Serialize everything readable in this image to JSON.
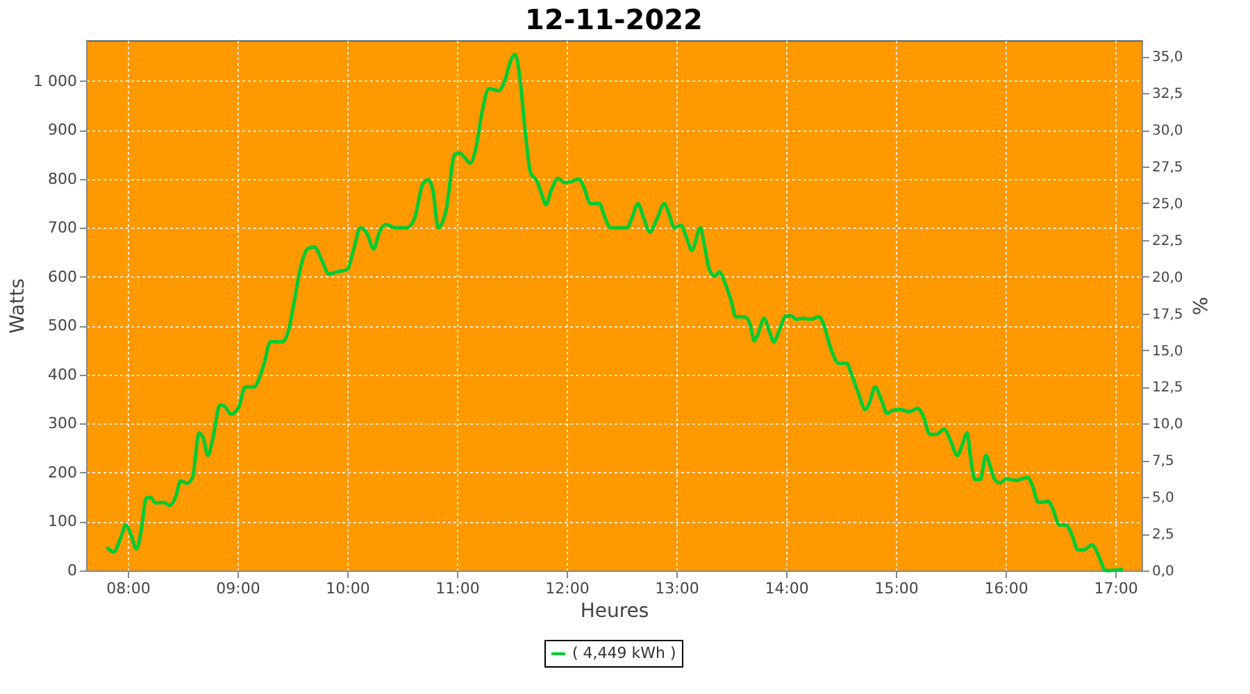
{
  "chart_data": {
    "type": "line",
    "title": "12-11-2022",
    "xlabel": "Heures",
    "ylabel": "Watts",
    "y2label": "%",
    "xlim": [
      7.62,
      17.24
    ],
    "xticks": [
      {
        "value": 8,
        "label": "08:00"
      },
      {
        "value": 9,
        "label": "09:00"
      },
      {
        "value": 10,
        "label": "10:00"
      },
      {
        "value": 11,
        "label": "11:00"
      },
      {
        "value": 12,
        "label": "12:00"
      },
      {
        "value": 13,
        "label": "13:00"
      },
      {
        "value": 14,
        "label": "14:00"
      },
      {
        "value": 15,
        "label": "15:00"
      },
      {
        "value": 16,
        "label": "16:00"
      },
      {
        "value": 17,
        "label": "17:00"
      }
    ],
    "ylim": [
      0,
      1083
    ],
    "yticks": [
      0,
      100,
      200,
      300,
      400,
      500,
      600,
      700,
      800,
      900,
      {
        "value": 1000,
        "label": "1 000"
      }
    ],
    "y2lim": [
      0,
      36.1
    ],
    "y2ticks": [
      {
        "value": 0,
        "label": "0,0"
      },
      {
        "value": 2.5,
        "label": "2,5"
      },
      {
        "value": 5,
        "label": "5,0"
      },
      {
        "value": 7.5,
        "label": "7,5"
      },
      {
        "value": 10,
        "label": "10,0"
      },
      {
        "value": 12.5,
        "label": "12,5"
      },
      {
        "value": 15,
        "label": "15,0"
      },
      {
        "value": 17.5,
        "label": "17,5"
      },
      {
        "value": 20,
        "label": "20,0"
      },
      {
        "value": 22.5,
        "label": "22,5"
      },
      {
        "value": 25,
        "label": "25,0"
      },
      {
        "value": 27.5,
        "label": "27,5"
      },
      {
        "value": 30,
        "label": "30,0"
      },
      {
        "value": 32.5,
        "label": "32,5"
      },
      {
        "value": 35,
        "label": "35,0"
      }
    ],
    "grid": true,
    "legend": "bottom",
    "series": [
      {
        "name": "( 4,449 kWh )",
        "color": "#00cc33",
        "x": [
          7.81,
          7.87,
          7.94,
          7.98,
          8.02,
          8.08,
          8.12,
          8.17,
          8.21,
          8.25,
          8.33,
          8.38,
          8.44,
          8.48,
          8.54,
          8.59,
          8.65,
          8.69,
          8.73,
          8.77,
          8.84,
          8.88,
          8.94,
          9.01,
          9.07,
          9.15,
          9.24,
          9.3,
          9.41,
          9.47,
          9.51,
          9.58,
          9.64,
          9.7,
          9.77,
          9.83,
          9.91,
          10.0,
          10.06,
          10.12,
          10.18,
          10.24,
          10.29,
          10.35,
          10.44,
          10.54,
          10.61,
          10.69,
          10.74,
          10.78,
          10.83,
          10.9,
          10.98,
          11.02,
          11.08,
          11.12,
          11.17,
          11.23,
          11.29,
          11.38,
          11.44,
          11.48,
          11.53,
          11.57,
          11.62,
          11.67,
          11.73,
          11.78,
          11.81,
          11.86,
          11.92,
          11.98,
          12.05,
          12.11,
          12.15,
          12.22,
          12.3,
          12.34,
          12.4,
          12.47,
          12.55,
          12.59,
          12.65,
          12.7,
          12.76,
          12.82,
          12.89,
          12.93,
          12.98,
          13.04,
          13.1,
          13.14,
          13.22,
          13.25,
          13.3,
          13.35,
          13.39,
          13.45,
          13.5,
          13.54,
          13.62,
          13.67,
          13.71,
          13.74,
          13.8,
          13.85,
          13.89,
          13.93,
          14.0,
          14.05,
          14.09,
          14.15,
          14.22,
          14.3,
          14.34,
          14.4,
          14.48,
          14.55,
          14.6,
          14.66,
          14.72,
          14.76,
          14.81,
          14.87,
          14.92,
          14.97,
          15.04,
          15.12,
          15.2,
          15.25,
          15.31,
          15.37,
          15.44,
          15.5,
          15.56,
          15.61,
          15.65,
          15.68,
          15.72,
          15.77,
          15.82,
          15.86,
          15.9,
          15.95,
          16.01,
          16.09,
          16.2,
          16.24,
          16.3,
          16.39,
          16.43,
          16.49,
          16.55,
          16.6,
          16.66,
          16.71,
          16.79,
          16.85,
          16.91,
          16.96,
          17.07
        ],
        "values": [
          47,
          38,
          70,
          93,
          79,
          44,
          79,
          149,
          149,
          138,
          139,
          133,
          153,
          183,
          178,
          190,
          281,
          269,
          235,
          264,
          338,
          336,
          319,
          333,
          375,
          375,
          421,
          467,
          467,
          495,
          541,
          624,
          657,
          661,
          633,
          606,
          610,
          615,
          657,
          700,
          689,
          657,
          689,
          707,
          700,
          700,
          717,
          790,
          798,
          777,
          700,
          735,
          850,
          853,
          841,
          832,
          860,
          938,
          984,
          980,
          1003,
          1035,
          1054,
          1012,
          901,
          813,
          795,
          763,
          747,
          777,
          801,
          792,
          795,
          800,
          786,
          749,
          749,
          726,
          700,
          700,
          700,
          717,
          749,
          721,
          691,
          717,
          749,
          730,
          700,
          705,
          675,
          654,
          700,
          670,
          615,
          601,
          610,
          583,
          550,
          518,
          518,
          504,
          469,
          481,
          515,
          486,
          467,
          486,
          520,
          520,
          513,
          515,
          513,
          518,
          504,
          458,
          423,
          423,
          398,
          361,
          329,
          343,
          375,
          347,
          321,
          327,
          329,
          324,
          331,
          315,
          278,
          278,
          289,
          264,
          235,
          260,
          281,
          232,
          186,
          186,
          235,
          213,
          186,
          179,
          187,
          184,
          190,
          176,
          139,
          141,
          126,
          93,
          93,
          75,
          42,
          42,
          52,
          29,
          0,
          0,
          2
        ]
      }
    ]
  }
}
